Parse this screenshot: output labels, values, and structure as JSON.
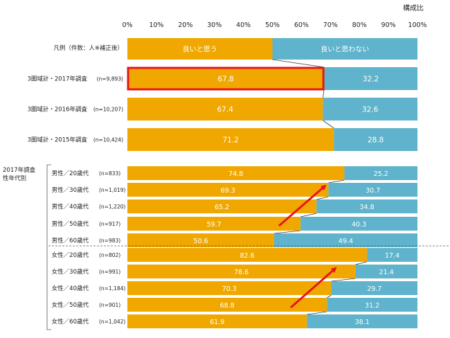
{
  "chart_data": {
    "type": "bar",
    "stacked": "100%",
    "unit_label": "構成比",
    "x_ticks": [
      "0%",
      "10%",
      "20%",
      "30%",
      "40%",
      "50%",
      "60%",
      "70%",
      "80%",
      "90%",
      "100%"
    ],
    "xlim": [
      0,
      100
    ],
    "legend": {
      "title": "凡例（件数：人※補正後）",
      "entries": [
        {
          "label": "良いと思う",
          "color": "#f0a800"
        },
        {
          "label": "良いと思わない",
          "color": "#5fb3cc"
        }
      ]
    },
    "section_label": "2017年調査\n性年代別",
    "rows": [
      {
        "label": "3圏域計・2017年調査",
        "n": "(n=9,893)",
        "good": 67.8,
        "not_good": 32.2,
        "highlight": true
      },
      {
        "label": "3圏域計・2016年調査",
        "n": "(n=10,207)",
        "good": 67.4,
        "not_good": 32.6
      },
      {
        "label": "3圏域計・2015年調査",
        "n": "(n=10,424)",
        "good": 71.2,
        "not_good": 28.8
      },
      {
        "label": "男性／20歳代",
        "n": "(n=833)",
        "good": 74.8,
        "not_good": 25.2
      },
      {
        "label": "男性／30歳代",
        "n": "(n=1,019)",
        "good": 69.3,
        "not_good": 30.7
      },
      {
        "label": "男性／40歳代",
        "n": "(n=1,220)",
        "good": 65.2,
        "not_good": 34.8
      },
      {
        "label": "男性／50歳代",
        "n": "(n=917)",
        "good": 59.7,
        "not_good": 40.3
      },
      {
        "label": "男性／60歳代",
        "n": "(n=983)",
        "good": 50.6,
        "not_good": 49.4
      },
      {
        "label": "女性／20歳代",
        "n": "(n=802)",
        "good": 82.6,
        "not_good": 17.4
      },
      {
        "label": "女性／30歳代",
        "n": "(n=991)",
        "good": 78.6,
        "not_good": 21.4
      },
      {
        "label": "女性／40歳代",
        "n": "(n=1,184)",
        "good": 70.3,
        "not_good": 29.7
      },
      {
        "label": "女性／50歳代",
        "n": "(n=901)",
        "good": 68.8,
        "not_good": 31.2
      },
      {
        "label": "女性／60歳代",
        "n": "(n=1,042)",
        "good": 61.9,
        "not_good": 38.1
      }
    ],
    "colors": {
      "good": "#f0a800",
      "not_good": "#5fb3cc",
      "highlight": "#e8141c",
      "arrow": "#e8141c",
      "connector": "#333333"
    }
  }
}
